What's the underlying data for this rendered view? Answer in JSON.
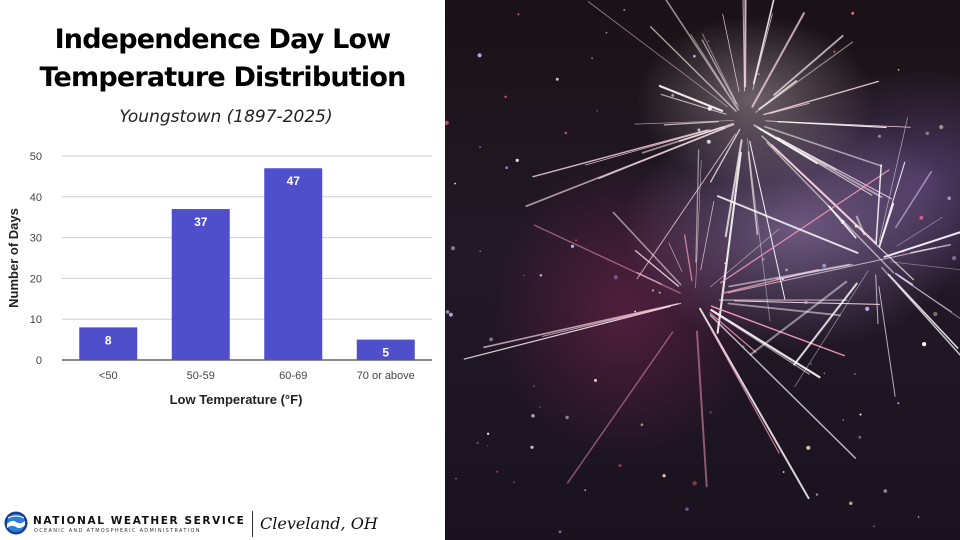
{
  "title_lines": [
    "Independence Day Low",
    "Temperature Distribution"
  ],
  "subtitle": "Youngstown (1897-2025)",
  "chart_data": {
    "type": "bar",
    "categories": [
      "<50",
      "50-59",
      "60-69",
      "70 or above"
    ],
    "values": [
      8,
      37,
      47,
      5
    ],
    "xlabel": "Low Temperature (°F)",
    "ylabel": "Number of Days",
    "ylim": [
      0,
      50
    ],
    "yticks": [
      0,
      10,
      20,
      30,
      40,
      50
    ],
    "grid": true,
    "legend": "none",
    "bar_color": "#4f4fcc"
  },
  "footer": {
    "agency": "NATIONAL WEATHER SERVICE",
    "agency_sub": "OCEANIC AND ATMOSPHERIC ADMINISTRATION",
    "office": "Cleveland, OH"
  },
  "image": {
    "icon": "noaa-logo-icon",
    "photo": "fireworks-photo"
  }
}
